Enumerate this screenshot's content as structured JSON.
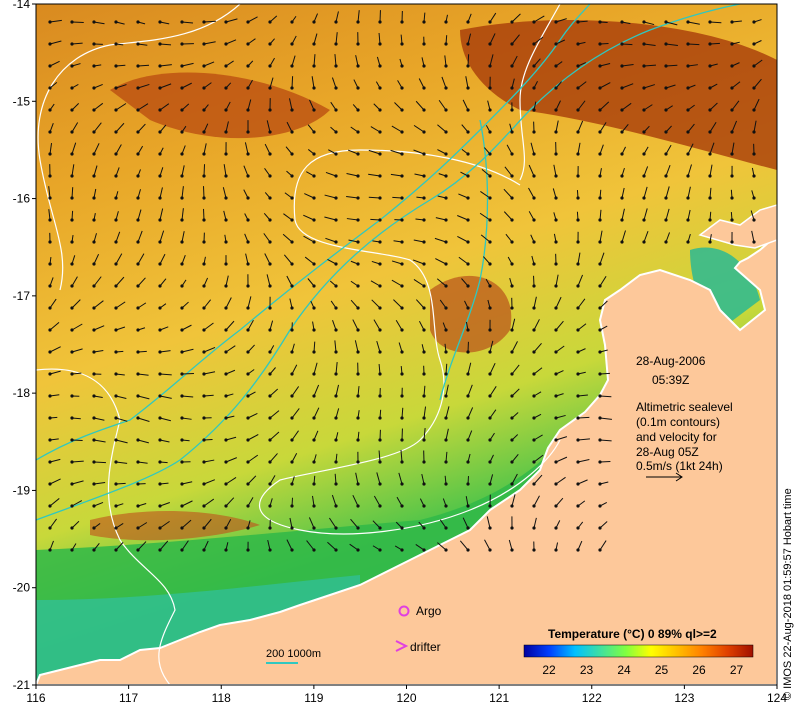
{
  "map": {
    "x_ticks": [
      "116",
      "117",
      "118",
      "119",
      "120",
      "121",
      "122",
      "123",
      "124"
    ],
    "y_ticks": [
      "-14",
      "-15",
      "-16",
      "-17",
      "-18",
      "-19",
      "-20",
      "-21"
    ],
    "x_range": [
      116,
      124
    ],
    "y_range": [
      -21,
      -14
    ],
    "land_color": "#fdc89a",
    "contour_color": "#ffffff",
    "isobath_color": "#2fc8c0"
  },
  "annotation": {
    "date": "28-Aug-2006",
    "time": "05:39Z",
    "lines": [
      "Altimetric sealevel",
      "(0.1m contours)",
      "and velocity for",
      "28-Aug 05Z",
      "0.5m/s (1kt 24h)"
    ]
  },
  "legend": {
    "argo_label": "Argo",
    "drifter_label": "drifter",
    "isobath_label": "200  1000m",
    "colorbar_title": "Temperature (°C) 0 89% ql>=2",
    "colorbar_ticks": [
      "22",
      "23",
      "24",
      "25",
      "26",
      "27"
    ],
    "colorbar_colors": [
      "#0000a0",
      "#0040ff",
      "#00c0ff",
      "#40e0a0",
      "#80ff40",
      "#ffff00",
      "#ffc000",
      "#ff8000",
      "#e04000",
      "#a01000"
    ]
  },
  "credit": "© IMOS 22-Aug-2018 01:59:57 Hobart time"
}
